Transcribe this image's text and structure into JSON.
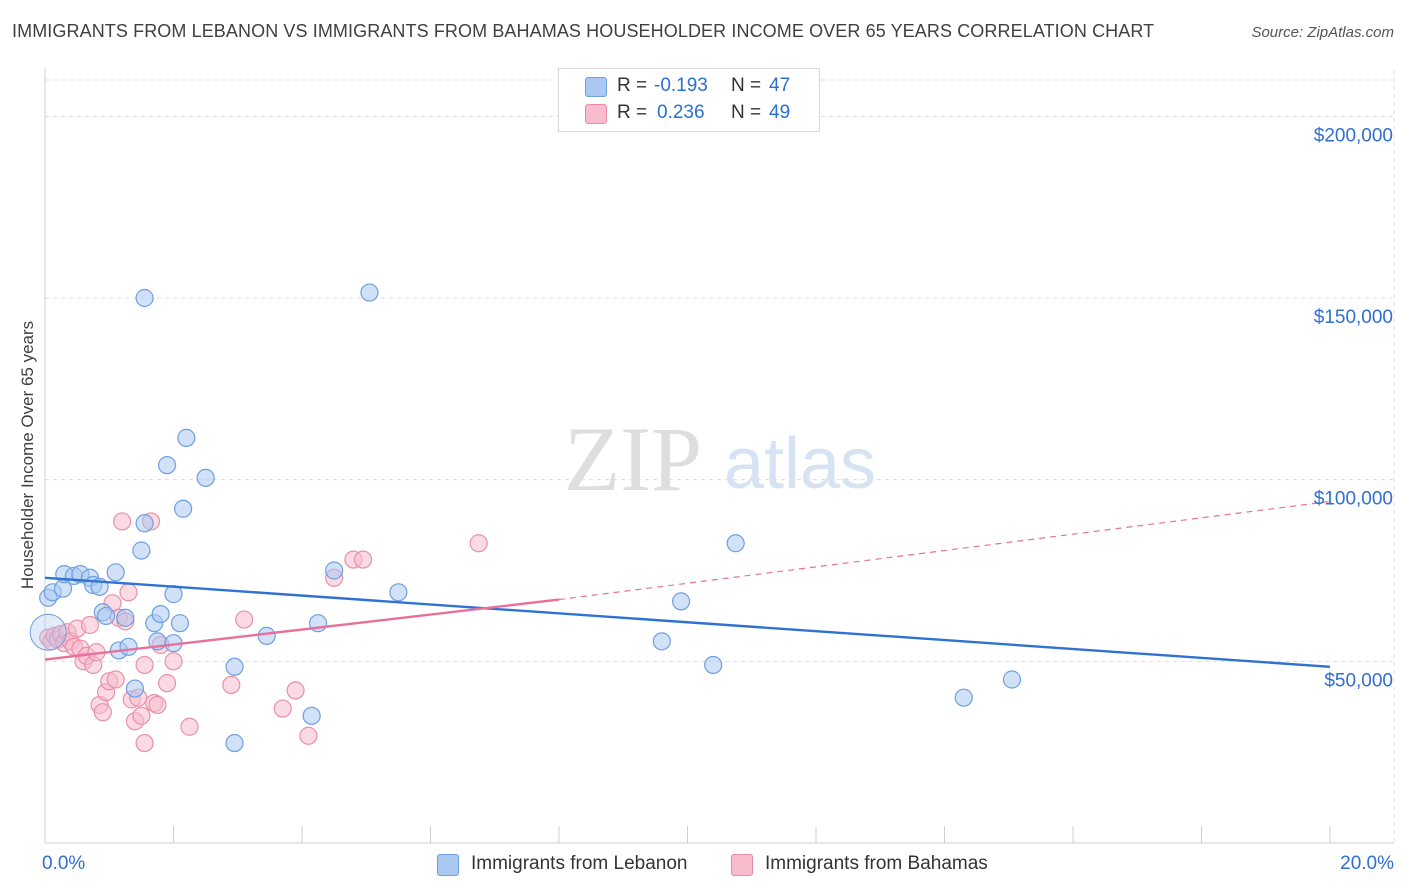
{
  "title": "IMMIGRANTS FROM LEBANON VS IMMIGRANTS FROM BAHAMAS HOUSEHOLDER INCOME OVER 65 YEARS CORRELATION CHART",
  "source": "Source: ZipAtlas.com",
  "watermark": {
    "zip": "ZIP",
    "atlas": "atlas"
  },
  "legend": {
    "rows": [
      {
        "r_label": "R =",
        "r_value": "-0.193",
        "n_label": "N =",
        "n_value": "47",
        "color": "#a9c8f2",
        "border": "#6f9fe0"
      },
      {
        "r_label": "R =",
        "r_value": "0.236",
        "n_label": "N =",
        "n_value": "49",
        "color": "#f8bccc",
        "border": "#ea8aa8"
      }
    ]
  },
  "colors": {
    "blue_fill": "#a9c8f2",
    "blue_stroke": "#6f9fe0",
    "blue_line": "#2f72d1",
    "pink_fill": "#f8bccc",
    "pink_stroke": "#e890ab",
    "pink_line": "#e8709a",
    "tick_label": "#2f6fd1"
  },
  "chart_data": {
    "type": "scatter",
    "ylabel": "Householder Income Over 65 years",
    "xlim": [
      0,
      20
    ],
    "ylim": [
      0,
      210000
    ],
    "x_tick_labels": [
      "0.0%",
      "20.0%"
    ],
    "y_ticks": [
      50000,
      100000,
      150000,
      200000
    ],
    "y_tick_labels": [
      "$50,000",
      "$100,000",
      "$150,000",
      "$200,000"
    ],
    "grid": true,
    "legend_position": "top-center",
    "series": [
      {
        "name": "Immigrants from Lebanon",
        "points": [
          [
            0.05,
            67500
          ],
          [
            0.12,
            69000
          ],
          [
            0.28,
            70000
          ],
          [
            0.3,
            74000
          ],
          [
            0.45,
            73500
          ],
          [
            0.55,
            74000
          ],
          [
            0.7,
            73000
          ],
          [
            0.75,
            71000
          ],
          [
            0.85,
            70500
          ],
          [
            0.9,
            63500
          ],
          [
            0.95,
            62500
          ],
          [
            1.1,
            74500
          ],
          [
            1.15,
            53000
          ],
          [
            1.25,
            62000
          ],
          [
            1.3,
            54000
          ],
          [
            1.4,
            42500
          ],
          [
            1.5,
            80500
          ],
          [
            1.55,
            88000
          ],
          [
            1.55,
            150000
          ],
          [
            1.7,
            60500
          ],
          [
            1.75,
            55500
          ],
          [
            1.8,
            63000
          ],
          [
            1.9,
            104000
          ],
          [
            2.0,
            55000
          ],
          [
            2.0,
            68500
          ],
          [
            2.1,
            60500
          ],
          [
            2.15,
            92000
          ],
          [
            2.2,
            111500
          ],
          [
            2.5,
            100500
          ],
          [
            2.95,
            48500
          ],
          [
            2.95,
            27500
          ],
          [
            3.45,
            57000
          ],
          [
            4.15,
            35000
          ],
          [
            4.25,
            60500
          ],
          [
            4.5,
            75000
          ],
          [
            5.05,
            151500
          ],
          [
            5.5,
            69000
          ],
          [
            9.6,
            55500
          ],
          [
            9.9,
            66500
          ],
          [
            10.4,
            49000
          ],
          [
            10.75,
            82500
          ],
          [
            14.3,
            40000
          ],
          [
            15.05,
            45000
          ]
        ]
      },
      {
        "name": "Immigrants from Bahamas",
        "points": [
          [
            0.05,
            56500
          ],
          [
            0.1,
            55500
          ],
          [
            0.15,
            57000
          ],
          [
            0.2,
            56000
          ],
          [
            0.25,
            57500
          ],
          [
            0.3,
            55000
          ],
          [
            0.35,
            58000
          ],
          [
            0.4,
            55500
          ],
          [
            0.45,
            54000
          ],
          [
            0.5,
            59000
          ],
          [
            0.55,
            53500
          ],
          [
            0.6,
            50000
          ],
          [
            0.65,
            51500
          ],
          [
            0.7,
            60000
          ],
          [
            0.75,
            49000
          ],
          [
            0.8,
            52500
          ],
          [
            0.85,
            38000
          ],
          [
            0.9,
            36000
          ],
          [
            0.95,
            41500
          ],
          [
            1.0,
            44500
          ],
          [
            1.05,
            66000
          ],
          [
            1.1,
            45000
          ],
          [
            1.15,
            62000
          ],
          [
            1.2,
            88500
          ],
          [
            1.25,
            61000
          ],
          [
            1.3,
            69000
          ],
          [
            1.35,
            39500
          ],
          [
            1.4,
            33500
          ],
          [
            1.45,
            40000
          ],
          [
            1.5,
            35000
          ],
          [
            1.55,
            49000
          ],
          [
            1.55,
            27500
          ],
          [
            1.65,
            88500
          ],
          [
            1.7,
            38500
          ],
          [
            1.75,
            38000
          ],
          [
            1.8,
            54500
          ],
          [
            1.9,
            44000
          ],
          [
            2.0,
            50000
          ],
          [
            2.25,
            32000
          ],
          [
            2.9,
            43500
          ],
          [
            3.1,
            61500
          ],
          [
            3.7,
            37000
          ],
          [
            3.9,
            42000
          ],
          [
            4.1,
            29500
          ],
          [
            4.5,
            73000
          ],
          [
            4.8,
            78000
          ],
          [
            4.95,
            78000
          ],
          [
            6.75,
            82500
          ]
        ]
      }
    ],
    "trendlines": [
      {
        "series": "Immigrants from Lebanon",
        "x": [
          0,
          20
        ],
        "y": [
          73000,
          48500
        ],
        "style": "solid"
      },
      {
        "series": "Immigrants from Bahamas",
        "x": [
          0,
          8
        ],
        "y": [
          50500,
          67000
        ],
        "style": "solid"
      },
      {
        "series": "Immigrants from Bahamas",
        "x": [
          8,
          20
        ],
        "y": [
          67000,
          94000
        ],
        "style": "dashed"
      }
    ]
  },
  "bottom_legend": [
    {
      "label": "Immigrants from Lebanon"
    },
    {
      "label": "Immigrants from Bahamas"
    }
  ]
}
